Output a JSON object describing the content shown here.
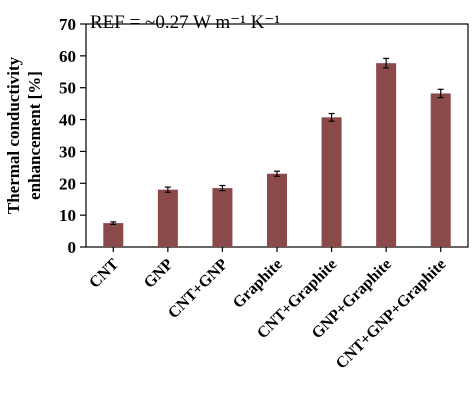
{
  "chart_data": {
    "type": "bar",
    "categories": [
      "CNT",
      "GNP",
      "CNT+GNP",
      "Graphite",
      "CNT+Graphite",
      "GNP+Graphite",
      "CNT+GNP+Graphite"
    ],
    "values": [
      7.5,
      18,
      18.5,
      23,
      40.7,
      57.7,
      48.2
    ],
    "errors": [
      0.4,
      0.8,
      0.8,
      0.8,
      1.2,
      1.5,
      1.3
    ],
    "ylabel_line1": "Thermal conductivity",
    "ylabel_line2": "enhancement [%]",
    "annotation": "REF = ~0.27 W m⁻¹ K⁻¹",
    "yticks": [
      "0",
      "10",
      "20",
      "30",
      "40",
      "50",
      "60",
      "70"
    ],
    "ylim": [
      0,
      70
    ],
    "bar_color": "#8a4a4a",
    "grid": false
  }
}
